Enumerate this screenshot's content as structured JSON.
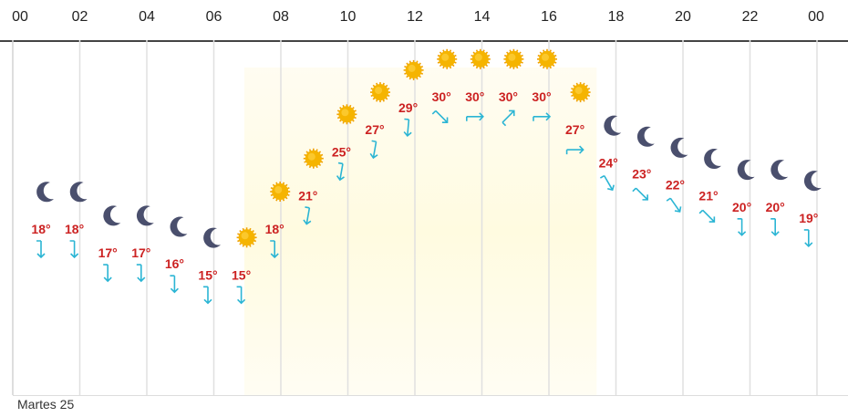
{
  "hour_labels": [
    "00",
    "02",
    "04",
    "06",
    "08",
    "10",
    "12",
    "14",
    "16",
    "18",
    "20",
    "22",
    "00"
  ],
  "day_label": "Martes 25",
  "colors": {
    "temp": "#cc2222",
    "wind": "#2bb5d4",
    "sun": "#f5b400",
    "moon": "#4a4f6d",
    "daylight": "#fffbe0",
    "grid": "#e0e0e0"
  },
  "chart_data": {
    "type": "line",
    "title": "",
    "x_unit": "hour",
    "daylight_hours": [
      6.9,
      17.4
    ],
    "points": [
      {
        "hour": 0,
        "temp": 18,
        "icon": "moon-icon",
        "wind_deg": 180
      },
      {
        "hour": 1,
        "temp": 18,
        "icon": "moon-icon",
        "wind_deg": 180
      },
      {
        "hour": 2,
        "temp": 17,
        "icon": "moon-icon",
        "wind_deg": 180
      },
      {
        "hour": 3,
        "temp": 17,
        "icon": "moon-icon",
        "wind_deg": 180
      },
      {
        "hour": 4,
        "temp": 16,
        "icon": "moon-icon",
        "wind_deg": 180
      },
      {
        "hour": 5,
        "temp": 15,
        "icon": "moon-icon",
        "wind_deg": 180
      },
      {
        "hour": 6,
        "temp": 15,
        "icon": "sun-icon",
        "wind_deg": 180
      },
      {
        "hour": 7,
        "temp": 18,
        "icon": "sun-icon",
        "wind_deg": 180
      },
      {
        "hour": 8,
        "temp": 21,
        "icon": "sun-icon",
        "wind_deg": 190
      },
      {
        "hour": 9,
        "temp": 25,
        "icon": "sun-icon",
        "wind_deg": 190
      },
      {
        "hour": 10,
        "temp": 27,
        "icon": "sun-icon",
        "wind_deg": 190
      },
      {
        "hour": 11,
        "temp": 29,
        "icon": "sun-icon",
        "wind_deg": 185
      },
      {
        "hour": 12,
        "temp": 30,
        "icon": "sun-icon",
        "wind_deg": 135
      },
      {
        "hour": 13,
        "temp": 30,
        "icon": "sun-icon",
        "wind_deg": 90
      },
      {
        "hour": 14,
        "temp": 30,
        "icon": "sun-icon",
        "wind_deg": 45
      },
      {
        "hour": 15,
        "temp": 30,
        "icon": "sun-icon",
        "wind_deg": 90
      },
      {
        "hour": 16,
        "temp": 27,
        "icon": "sun-icon",
        "wind_deg": 90
      },
      {
        "hour": 17,
        "temp": 24,
        "icon": "moon-icon",
        "wind_deg": 150
      },
      {
        "hour": 18,
        "temp": 23,
        "icon": "moon-icon",
        "wind_deg": 135
      },
      {
        "hour": 19,
        "temp": 22,
        "icon": "moon-icon",
        "wind_deg": 145
      },
      {
        "hour": 20,
        "temp": 21,
        "icon": "moon-icon",
        "wind_deg": 135
      },
      {
        "hour": 21,
        "temp": 20,
        "icon": "moon-icon",
        "wind_deg": 180
      },
      {
        "hour": 22,
        "temp": 20,
        "icon": "moon-icon",
        "wind_deg": 180
      },
      {
        "hour": 23,
        "temp": 19,
        "icon": "moon-icon",
        "wind_deg": 180
      }
    ],
    "temp_unit": "°"
  }
}
